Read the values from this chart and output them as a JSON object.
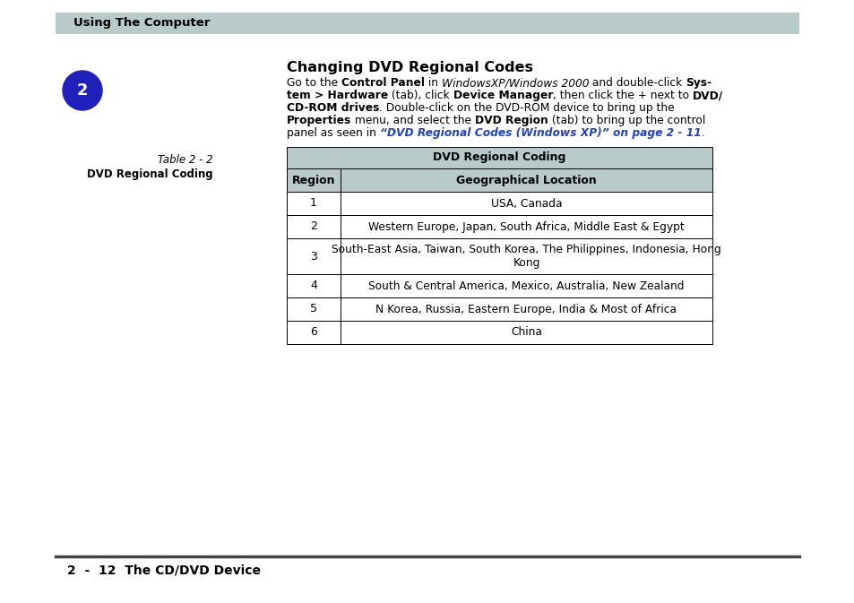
{
  "page_bg": "#ffffff",
  "header_bg": "#b8caca",
  "header_text": "Using The Computer",
  "circle_bg": "#2020bb",
  "circle_text": "2",
  "circle_text_color": "#ffffff",
  "section_title": "Changing DVD Regional Codes",
  "table_caption_italic": "Table 2 - 2",
  "table_caption_bold": "DVD Regional Coding",
  "table_header_bg": "#b8caca",
  "table_header_title": "DVD Regional Coding",
  "table_col1_header": "Region",
  "table_col2_header": "Geographical Location",
  "table_rows": [
    [
      "1",
      "USA, Canada"
    ],
    [
      "2",
      "Western Europe, Japan, South Africa, Middle East & Egypt"
    ],
    [
      "3",
      "South-East Asia, Taiwan, South Korea, The Philippines, Indonesia, Hong\nKong"
    ],
    [
      "4",
      "South & Central America, Mexico, Australia, New Zealand"
    ],
    [
      "5",
      "N Korea, Russia, Eastern Europe, India & Most of Africa"
    ],
    [
      "6",
      "China"
    ]
  ],
  "footer_line_color": "#555555",
  "footer_text": "2  -  12  The CD/DVD Device",
  "blue_link_color": "#2244bb",
  "text_color": "#000000"
}
